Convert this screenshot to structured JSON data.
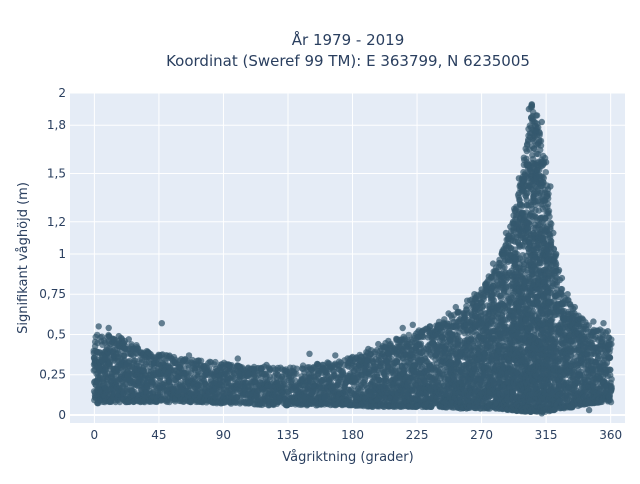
{
  "chart_data": {
    "type": "scatter",
    "title_lines": [
      "År 1979 - 2019",
      "Koordinat (Sweref 99 TM): E 363799, N 6235005"
    ],
    "xlabel": "Vågriktning (grader)",
    "ylabel": "Signifikant våghöjd (m)",
    "xlim": [
      -17,
      370
    ],
    "ylim": [
      -0.05,
      2.0
    ],
    "x_ticks": [
      0,
      45,
      90,
      135,
      180,
      225,
      270,
      315,
      360
    ],
    "y_ticks": [
      0,
      0.25,
      0.5,
      0.75,
      1,
      1.2,
      1.5,
      1.8,
      2
    ],
    "y_tick_labels": [
      "0",
      "0,25",
      "0,5",
      "0,75",
      "1",
      "1,2",
      "1,5",
      "1,8",
      "2"
    ],
    "grid": true,
    "marker_color": "#34586e",
    "background_color": "#e5ecf6",
    "envelope": [
      {
        "x": 0,
        "low": 0.07,
        "high": 0.5
      },
      {
        "x": 10,
        "low": 0.08,
        "high": 0.5
      },
      {
        "x": 20,
        "low": 0.08,
        "high": 0.48
      },
      {
        "x": 30,
        "low": 0.08,
        "high": 0.43
      },
      {
        "x": 45,
        "low": 0.08,
        "high": 0.38
      },
      {
        "x": 60,
        "low": 0.08,
        "high": 0.36
      },
      {
        "x": 75,
        "low": 0.08,
        "high": 0.34
      },
      {
        "x": 90,
        "low": 0.07,
        "high": 0.33
      },
      {
        "x": 105,
        "low": 0.07,
        "high": 0.3
      },
      {
        "x": 120,
        "low": 0.06,
        "high": 0.3
      },
      {
        "x": 135,
        "low": 0.06,
        "high": 0.3
      },
      {
        "x": 150,
        "low": 0.06,
        "high": 0.31
      },
      {
        "x": 165,
        "low": 0.06,
        "high": 0.33
      },
      {
        "x": 180,
        "low": 0.06,
        "high": 0.36
      },
      {
        "x": 195,
        "low": 0.05,
        "high": 0.41
      },
      {
        "x": 210,
        "low": 0.05,
        "high": 0.48
      },
      {
        "x": 225,
        "low": 0.05,
        "high": 0.52
      },
      {
        "x": 240,
        "low": 0.05,
        "high": 0.58
      },
      {
        "x": 255,
        "low": 0.04,
        "high": 0.66
      },
      {
        "x": 270,
        "low": 0.04,
        "high": 0.78
      },
      {
        "x": 280,
        "low": 0.04,
        "high": 0.92
      },
      {
        "x": 290,
        "low": 0.03,
        "high": 1.15
      },
      {
        "x": 300,
        "low": 0.02,
        "high": 1.6
      },
      {
        "x": 305,
        "low": 0.02,
        "high": 1.93
      },
      {
        "x": 310,
        "low": 0.02,
        "high": 1.82
      },
      {
        "x": 315,
        "low": 0.02,
        "high": 1.55
      },
      {
        "x": 320,
        "low": 0.03,
        "high": 1.05
      },
      {
        "x": 325,
        "low": 0.04,
        "high": 0.8
      },
      {
        "x": 335,
        "low": 0.05,
        "high": 0.65
      },
      {
        "x": 345,
        "low": 0.07,
        "high": 0.56
      },
      {
        "x": 355,
        "low": 0.08,
        "high": 0.52
      },
      {
        "x": 360,
        "low": 0.08,
        "high": 0.48
      }
    ],
    "outliers": [
      {
        "x": 3,
        "y": 0.55
      },
      {
        "x": 10,
        "y": 0.54
      },
      {
        "x": 17,
        "y": 0.49
      },
      {
        "x": 24,
        "y": 0.47
      },
      {
        "x": 47,
        "y": 0.57
      },
      {
        "x": 66,
        "y": 0.37
      },
      {
        "x": 100,
        "y": 0.35
      },
      {
        "x": 120,
        "y": 0.31
      },
      {
        "x": 150,
        "y": 0.38
      },
      {
        "x": 168,
        "y": 0.37
      },
      {
        "x": 180,
        "y": 0.36
      },
      {
        "x": 186,
        "y": 0.34
      },
      {
        "x": 191,
        "y": 0.41
      },
      {
        "x": 198,
        "y": 0.44
      },
      {
        "x": 205,
        "y": 0.46
      },
      {
        "x": 215,
        "y": 0.54
      },
      {
        "x": 222,
        "y": 0.56
      },
      {
        "x": 234,
        "y": 0.55
      },
      {
        "x": 247,
        "y": 0.63
      },
      {
        "x": 252,
        "y": 0.67
      },
      {
        "x": 260,
        "y": 0.71
      },
      {
        "x": 265,
        "y": 0.75
      },
      {
        "x": 270,
        "y": 0.78
      },
      {
        "x": 275,
        "y": 0.86
      },
      {
        "x": 278,
        "y": 0.94
      },
      {
        "x": 282,
        "y": 0.92
      },
      {
        "x": 285,
        "y": 0.99
      },
      {
        "x": 287,
        "y": 1.13
      },
      {
        "x": 290,
        "y": 1.17
      },
      {
        "x": 292,
        "y": 1.2
      },
      {
        "x": 296,
        "y": 1.47
      },
      {
        "x": 303,
        "y": 1.9
      },
      {
        "x": 305,
        "y": 1.93
      },
      {
        "x": 308,
        "y": 1.86
      },
      {
        "x": 312,
        "y": 1.82
      },
      {
        "x": 315,
        "y": 1.57
      },
      {
        "x": 318,
        "y": 1.42
      },
      {
        "x": 320,
        "y": 1.13
      },
      {
        "x": 322,
        "y": 1.0
      },
      {
        "x": 324,
        "y": 0.9
      },
      {
        "x": 326,
        "y": 0.85
      },
      {
        "x": 330,
        "y": 0.75
      },
      {
        "x": 335,
        "y": 0.67
      },
      {
        "x": 340,
        "y": 0.6
      },
      {
        "x": 348,
        "y": 0.58
      },
      {
        "x": 355,
        "y": 0.57
      },
      {
        "x": 358,
        "y": 0.52
      },
      {
        "x": 345,
        "y": 0.03
      },
      {
        "x": 312,
        "y": 0.01
      }
    ]
  }
}
